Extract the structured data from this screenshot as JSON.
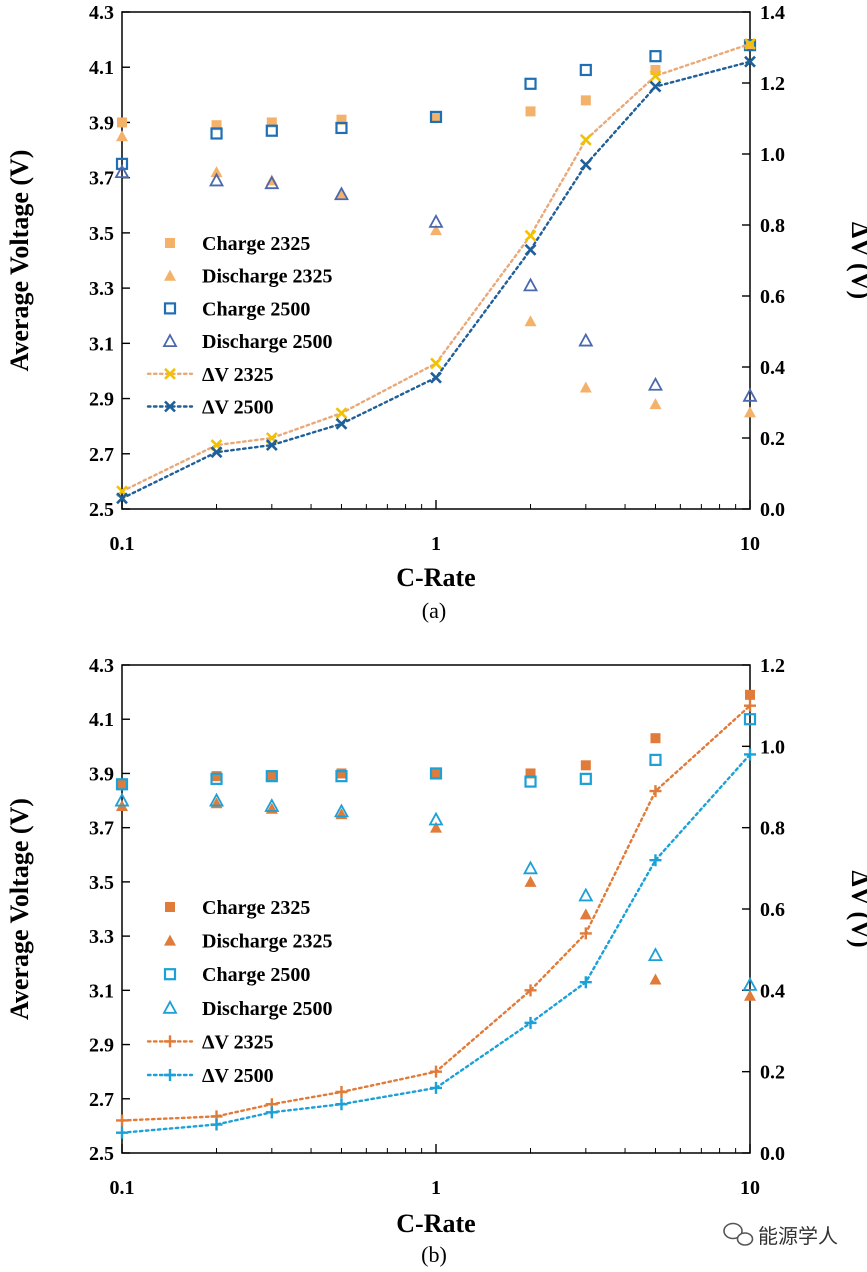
{
  "chart_data": [
    {
      "type": "scatter",
      "panel_label": "(a)",
      "xlabel": "C-Rate",
      "ylabel": "Average Voltage (V)",
      "y2label": "ΔV (V)",
      "xscale": "log",
      "xlim": [
        0.1,
        10
      ],
      "ylim": [
        2.5,
        4.3
      ],
      "y2lim": [
        0.0,
        1.4
      ],
      "xticks": [
        "0.1",
        "1",
        "10"
      ],
      "yticks": [
        "2.5",
        "2.7",
        "2.9",
        "3.1",
        "3.3",
        "3.5",
        "3.7",
        "3.9",
        "4.1",
        "4.3"
      ],
      "y2ticks": [
        "0.0",
        "0.2",
        "0.4",
        "0.6",
        "0.8",
        "1.0",
        "1.2",
        "1.4"
      ],
      "legend_position": "middle-left",
      "series": [
        {
          "name": "Charge 2325",
          "axis": "left",
          "marker": "square-filled",
          "color": "#F4B16A",
          "line": false,
          "x": [
            0.1,
            0.2,
            0.3,
            0.5,
            1,
            2,
            3,
            5,
            10
          ],
          "y": [
            3.9,
            3.89,
            3.9,
            3.91,
            3.92,
            3.94,
            3.98,
            4.09,
            4.18
          ]
        },
        {
          "name": "Discharge 2325",
          "axis": "left",
          "marker": "triangle-filled",
          "color": "#F4B16A",
          "line": false,
          "x": [
            0.1,
            0.2,
            0.3,
            0.5,
            1,
            2,
            3,
            5,
            10
          ],
          "y": [
            3.85,
            3.72,
            3.69,
            3.64,
            3.51,
            3.18,
            2.94,
            2.88,
            2.85
          ]
        },
        {
          "name": "Charge 2500",
          "axis": "left",
          "marker": "square-open",
          "color": "#1F6FB5",
          "line": false,
          "x": [
            0.1,
            0.2,
            0.3,
            0.5,
            1,
            2,
            3,
            5,
            10
          ],
          "y": [
            3.75,
            3.86,
            3.87,
            3.88,
            3.92,
            4.04,
            4.09,
            4.14,
            4.18
          ]
        },
        {
          "name": "Discharge 2500",
          "axis": "left",
          "marker": "triangle-open",
          "color": "#4A68B0",
          "line": false,
          "x": [
            0.1,
            0.2,
            0.3,
            0.5,
            1,
            2,
            3,
            5,
            10
          ],
          "y": [
            3.72,
            3.69,
            3.68,
            3.64,
            3.54,
            3.31,
            3.11,
            2.95,
            2.91
          ]
        },
        {
          "name": "ΔV 2325",
          "axis": "right",
          "marker": "x",
          "color": "#F2C200",
          "line": true,
          "line_color": "#E9A97A",
          "x": [
            0.1,
            0.2,
            0.3,
            0.5,
            1,
            2,
            3,
            5,
            10
          ],
          "y": [
            0.05,
            0.18,
            0.2,
            0.27,
            0.41,
            0.77,
            1.04,
            1.22,
            1.31
          ]
        },
        {
          "name": "ΔV 2500",
          "axis": "right",
          "marker": "x",
          "color": "#1F5F9A",
          "line": true,
          "line_color": "#1F5F9A",
          "x": [
            0.1,
            0.2,
            0.3,
            0.5,
            1,
            2,
            3,
            5,
            10
          ],
          "y": [
            0.03,
            0.16,
            0.18,
            0.24,
            0.37,
            0.73,
            0.97,
            1.19,
            1.26
          ]
        }
      ]
    },
    {
      "type": "scatter",
      "panel_label": "(b)",
      "xlabel": "C-Rate",
      "ylabel": "Average Voltage (V)",
      "y2label": "ΔV (V)",
      "xscale": "log",
      "xlim": [
        0.1,
        10
      ],
      "ylim": [
        2.5,
        4.3
      ],
      "y2lim": [
        0.0,
        1.2
      ],
      "xticks": [
        "0.1",
        "1",
        "10"
      ],
      "yticks": [
        "2.5",
        "2.7",
        "2.9",
        "3.1",
        "3.3",
        "3.5",
        "3.7",
        "3.9",
        "4.1",
        "4.3"
      ],
      "y2ticks": [
        "0.0",
        "0.2",
        "0.4",
        "0.6",
        "0.8",
        "1.0",
        "1.2"
      ],
      "legend_position": "lower-left",
      "series": [
        {
          "name": "Charge 2325",
          "axis": "left",
          "marker": "square-filled",
          "color": "#E07B39",
          "line": false,
          "x": [
            0.1,
            0.2,
            0.3,
            0.5,
            1,
            2,
            3,
            5,
            10
          ],
          "y": [
            3.86,
            3.89,
            3.89,
            3.9,
            3.9,
            3.9,
            3.93,
            4.03,
            4.19
          ]
        },
        {
          "name": "Discharge 2325",
          "axis": "left",
          "marker": "triangle-filled",
          "color": "#E07B39",
          "line": false,
          "x": [
            0.1,
            0.2,
            0.3,
            0.5,
            1,
            2,
            3,
            5,
            10
          ],
          "y": [
            3.78,
            3.79,
            3.77,
            3.75,
            3.7,
            3.5,
            3.38,
            3.14,
            3.08
          ]
        },
        {
          "name": "Charge 2500",
          "axis": "left",
          "marker": "square-open",
          "color": "#1BA1D8",
          "line": false,
          "x": [
            0.1,
            0.2,
            0.3,
            0.5,
            1,
            2,
            3,
            5,
            10
          ],
          "y": [
            3.86,
            3.88,
            3.89,
            3.89,
            3.9,
            3.87,
            3.88,
            3.95,
            4.1
          ]
        },
        {
          "name": "Discharge 2500",
          "axis": "left",
          "marker": "triangle-open",
          "color": "#1BA1D8",
          "line": false,
          "x": [
            0.1,
            0.2,
            0.3,
            0.5,
            1,
            2,
            3,
            5,
            10
          ],
          "y": [
            3.8,
            3.8,
            3.78,
            3.76,
            3.73,
            3.55,
            3.45,
            3.23,
            3.12
          ]
        },
        {
          "name": "ΔV 2325",
          "axis": "right",
          "marker": "plus",
          "color": "#E07B39",
          "line": true,
          "line_color": "#E07B39",
          "x": [
            0.1,
            0.2,
            0.3,
            0.5,
            1,
            2,
            3,
            5,
            10
          ],
          "y": [
            0.08,
            0.09,
            0.12,
            0.15,
            0.2,
            0.4,
            0.54,
            0.89,
            1.1
          ]
        },
        {
          "name": "ΔV 2500",
          "axis": "right",
          "marker": "plus",
          "color": "#1BA1D8",
          "line": true,
          "line_color": "#1BA1D8",
          "x": [
            0.1,
            0.2,
            0.3,
            0.5,
            1,
            2,
            3,
            5,
            10
          ],
          "y": [
            0.05,
            0.07,
            0.1,
            0.12,
            0.16,
            0.32,
            0.42,
            0.72,
            0.98
          ]
        }
      ]
    }
  ],
  "watermark": {
    "text": "能源学人"
  }
}
